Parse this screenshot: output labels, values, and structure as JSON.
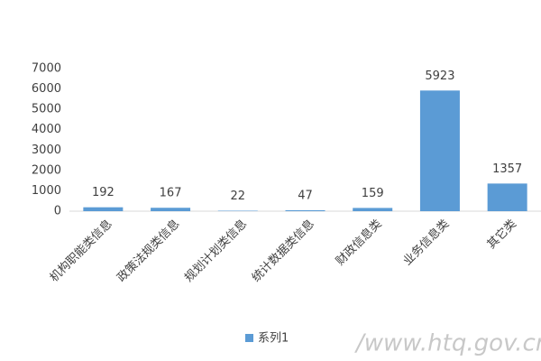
{
  "chart_data": {
    "type": "bar",
    "categories": [
      "机构职能类信息",
      "政策法规类信息",
      "规划计划类信息",
      "统计数据类信息",
      "财政信息类",
      "业务信息类",
      "其它类"
    ],
    "series": [
      {
        "name": "系列1",
        "color": "#5b9bd5",
        "values": [
          192,
          167,
          22,
          47,
          159,
          5923,
          1357
        ]
      }
    ],
    "ylim": [
      0,
      7000
    ],
    "yticks": [
      0,
      1000,
      2000,
      3000,
      4000,
      5000,
      6000,
      7000
    ],
    "grid": false,
    "legend": "bottom",
    "watermark": "/www.htq.gov.cn"
  }
}
